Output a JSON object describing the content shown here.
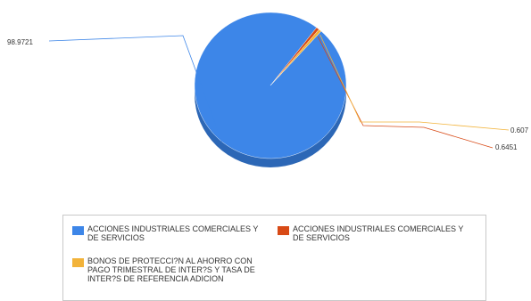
{
  "colors": {
    "series_0": "#3d86e8",
    "series_0_side": "#2c67b6",
    "series_1": "#d84a16",
    "series_2": "#f2b33a",
    "legend_border": "#c9c9c9"
  },
  "chart_data": {
    "type": "pie",
    "style": "3d",
    "title": "",
    "labels": [
      "ACCIONES INDUSTRIALES COMERCIALES Y DE SERVICIOS",
      "ACCIONES INDUSTRIALES COMERCIALES Y DE SERVICIOS",
      "BONOS DE PROTECCI?N AL AHORRO CON PAGO TRIMESTRAL DE INTER?S Y TASA DE INTER?S DE REFERENCIA ADICION"
    ],
    "values": [
      98.9721,
      0.6451,
      0.607
    ],
    "data_labels": [
      "98.9721",
      "0.6451",
      "0.607"
    ],
    "legend_position": "bottom",
    "legend": [
      {
        "label": "ACCIONES INDUSTRIALES COMERCIALES Y DE SERVICIOS",
        "color": "#3d86e8"
      },
      {
        "label": "ACCIONES INDUSTRIALES COMERCIALES Y DE SERVICIOS",
        "color": "#d84a16"
      },
      {
        "label": "BONOS DE PROTECCI?N AL AHORRO CON PAGO TRIMESTRAL DE INTER?S Y TASA DE INTER?S DE REFERENCIA ADICION",
        "color": "#f2b33a"
      }
    ]
  }
}
